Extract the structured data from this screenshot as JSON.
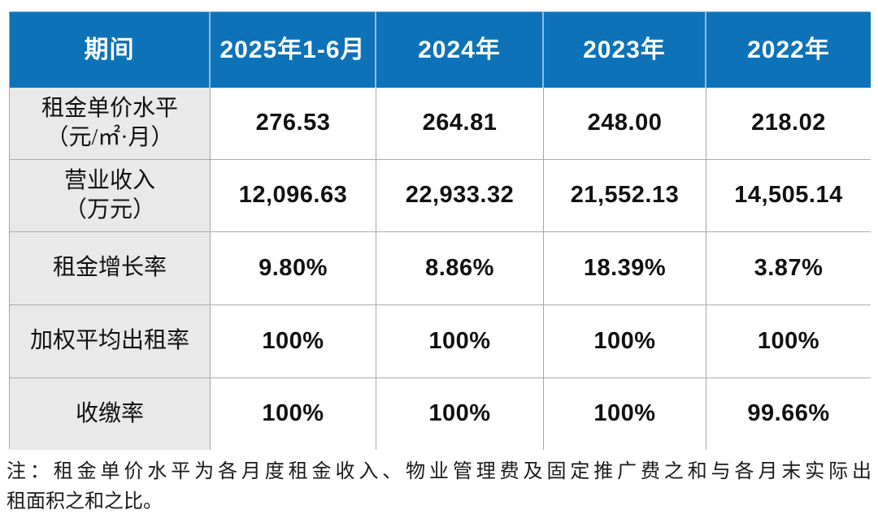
{
  "table": {
    "header": [
      "期间",
      "2025年1-6月",
      "2024年",
      "2023年",
      "2022年"
    ],
    "rows": [
      {
        "label": "租金单价水平",
        "label_unit": "（元/㎡·月）",
        "values": [
          "276.53",
          "264.81",
          "248.00",
          "218.02"
        ]
      },
      {
        "label": "营业收入",
        "label_unit": "（万元）",
        "values": [
          "12,096.63",
          "22,933.32",
          "21,552.13",
          "14,505.14"
        ]
      },
      {
        "label": "租金增长率",
        "label_unit": "",
        "values": [
          "9.80%",
          "8.86%",
          "18.39%",
          "3.87%"
        ]
      },
      {
        "label": "加权平均出租率",
        "label_unit": "",
        "values": [
          "100%",
          "100%",
          "100%",
          "100%"
        ]
      },
      {
        "label": "收缴率",
        "label_unit": "",
        "values": [
          "100%",
          "100%",
          "100%",
          "99.66%"
        ]
      }
    ]
  },
  "note": {
    "line1": "注：租金单价水平为各月度租金收入、物业管理费及固定推广费之和与各月末实际出",
    "line2": "租面积之和之比。"
  },
  "colors": {
    "header_bg": "#0e72b8",
    "header_text": "#ffffff",
    "label_bg": "#e9e9e9",
    "border": "#a6a6a6",
    "header_divider": "#8fbede"
  }
}
